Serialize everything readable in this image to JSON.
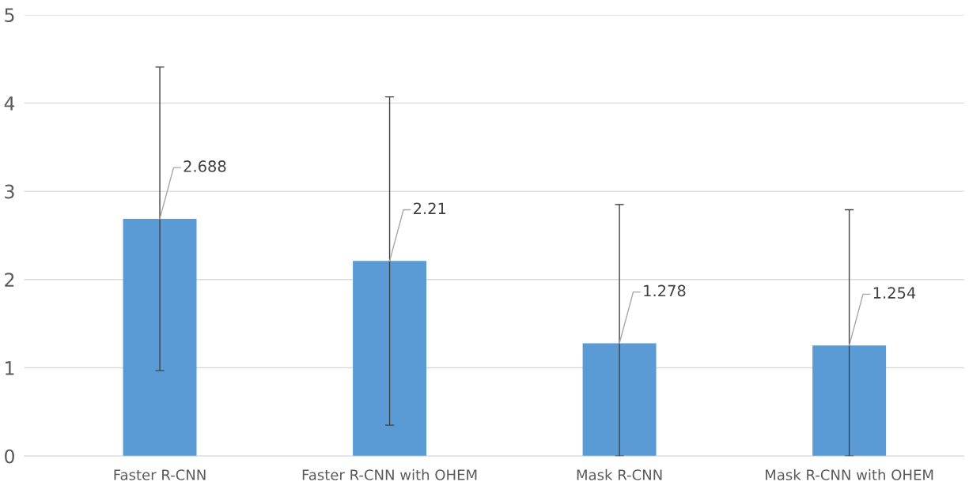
{
  "chart_data": {
    "type": "bar",
    "categories": [
      "Faster R-CNN",
      "Faster R-CNN with OHEM",
      "Mask R-CNN",
      "Mask R-CNN with OHEM"
    ],
    "values": [
      2.688,
      2.21,
      1.278,
      1.254
    ],
    "errors": [
      1.72,
      1.86,
      [
        0,
        2.85
      ],
      [
        0,
        2.79
      ]
    ],
    "color": "#5b9bd5",
    "ylim": [
      0,
      5
    ],
    "yticks": [
      0,
      1,
      2,
      3,
      4,
      5
    ],
    "grid": "y",
    "data_labels": true
  }
}
